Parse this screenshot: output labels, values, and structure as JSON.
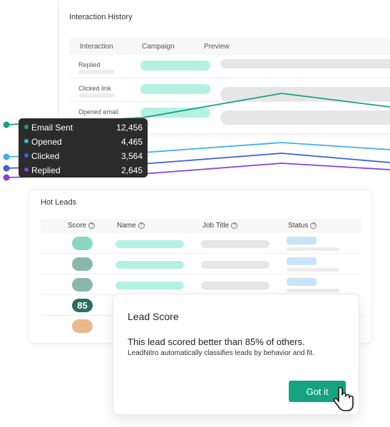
{
  "interaction_history": {
    "title": "Interaction History",
    "columns": [
      "Interaction",
      "Campaign",
      "Preview"
    ],
    "rows": [
      {
        "label": "Replied"
      },
      {
        "label": "Clicked link"
      },
      {
        "label": "Opened email"
      }
    ]
  },
  "tooltip": {
    "items": [
      {
        "name": "Email Sent",
        "value": "12,456",
        "color": "#14a37f"
      },
      {
        "name": "Opened",
        "value": "4,465",
        "color": "#3bb3e0"
      },
      {
        "name": "Clicked",
        "value": "3,564",
        "color": "#3d5fd9"
      },
      {
        "name": "Replied",
        "value": "2,645",
        "color": "#8a3ee0"
      }
    ]
  },
  "hot_leads": {
    "title": "Hot Leads",
    "columns": [
      "Score",
      "Name",
      "Job Title",
      "Status"
    ],
    "rows": [
      {
        "score": "",
        "score_color": "#8ad8c2"
      },
      {
        "score": "",
        "score_color": "#89b9ab"
      },
      {
        "score": "",
        "score_color": "#89b9ab"
      },
      {
        "score": "85",
        "score_color": "#2d6e5e"
      },
      {
        "score": "",
        "score_color": "#e9b98a"
      }
    ]
  },
  "lead_score_popup": {
    "title": "Lead Score",
    "headline": "This lead scored better than 85% of others.",
    "description": "LeadNitro automatically classifies leads by behavior and fit.",
    "button_label": "Got it"
  },
  "colors": {
    "accent": "#14a37f"
  }
}
